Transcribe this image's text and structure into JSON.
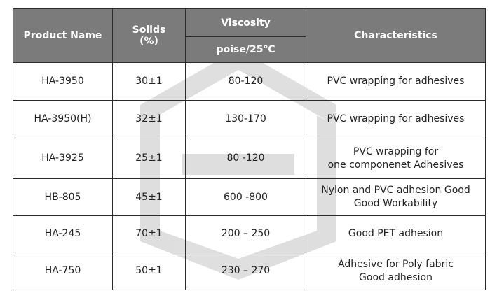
{
  "headers": {
    "product_name": "Product Name",
    "solids": "Solids\n(%)",
    "viscosity": "Viscosity",
    "viscosity_unit": "poise/25℃",
    "characteristics": "Characteristics"
  },
  "rows": [
    {
      "name": "HA-3950",
      "solids": "30±1",
      "viscosity": "80-120",
      "characteristics": "PVC wrapping for adhesives"
    },
    {
      "name": "HA-3950(H)",
      "solids": "32±1",
      "viscosity": "130-170",
      "characteristics": "PVC wrapping for adhesives"
    },
    {
      "name": "HA-3925",
      "solids": "25±1",
      "viscosity": "80 -120",
      "characteristics": "PVC wrapping  for\none componenet Adhesives"
    },
    {
      "name": "HB-805",
      "solids": "45±1",
      "viscosity": "600   -800",
      "characteristics": "Nylon and  PVC adhesion Good\nGood Workability"
    },
    {
      "name": "HA-245",
      "solids": "70±1",
      "viscosity": "200 – 250",
      "characteristics": "Good PET adhesion"
    },
    {
      "name": "HA-750",
      "solids": "50±1",
      "viscosity": "230 – 270",
      "characteristics": "Adhesive for Poly fabric\nGood adhesion"
    }
  ],
  "colors": {
    "header_bg": "#7b7b7b",
    "header_text": "#ffffff",
    "border": "#2b2b2b",
    "watermark": "#d9d9d9"
  }
}
